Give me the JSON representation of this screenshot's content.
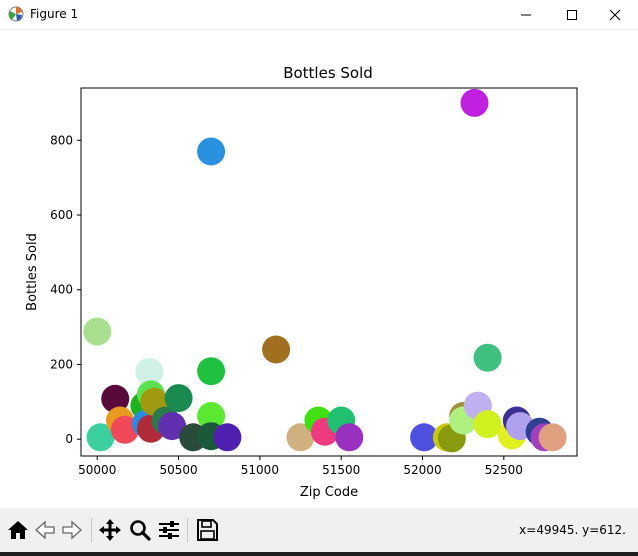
{
  "window": {
    "title": "Figure 1",
    "minimize": "—",
    "maximize": "☐",
    "close": "✕"
  },
  "toolbar": {
    "tools": [
      "home-icon",
      "back-icon",
      "forward-icon",
      "pan-icon",
      "zoom-icon",
      "configure-subplots-icon",
      "save-icon"
    ],
    "coordinates": "x=49945. y=612."
  },
  "chart_data": {
    "type": "scatter",
    "title": "Bottles Sold",
    "xlabel": "Zip Code",
    "ylabel": "Bottles Sold",
    "xlim": [
      49900,
      52950
    ],
    "ylim": [
      -45,
      940
    ],
    "xticks": [
      50000,
      50500,
      51000,
      51500,
      52000,
      52500
    ],
    "yticks": [
      0,
      200,
      400,
      600,
      800
    ],
    "grid": false,
    "points": [
      {
        "x": 50000,
        "y": 288,
        "color": "#a8e090"
      },
      {
        "x": 50020,
        "y": 5,
        "color": "#3dcfa0"
      },
      {
        "x": 50110,
        "y": 108,
        "color": "#5a0a3a"
      },
      {
        "x": 50140,
        "y": 50,
        "color": "#e89a20"
      },
      {
        "x": 50170,
        "y": 25,
        "color": "#f04a5a"
      },
      {
        "x": 50290,
        "y": 90,
        "color": "#1fb020"
      },
      {
        "x": 50300,
        "y": 42,
        "color": "#2a8ae0"
      },
      {
        "x": 50320,
        "y": 180,
        "color": "#d0f0e8"
      },
      {
        "x": 50330,
        "y": 120,
        "color": "#5ae050"
      },
      {
        "x": 50330,
        "y": 28,
        "color": "#b02a3a"
      },
      {
        "x": 50350,
        "y": 100,
        "color": "#a09a10"
      },
      {
        "x": 50420,
        "y": 50,
        "color": "#2a7a4a"
      },
      {
        "x": 50460,
        "y": 35,
        "color": "#6030b0"
      },
      {
        "x": 50500,
        "y": 110,
        "color": "#1a8a50"
      },
      {
        "x": 50590,
        "y": 5,
        "color": "#2a4a3a"
      },
      {
        "x": 50700,
        "y": 770,
        "color": "#2a90e0"
      },
      {
        "x": 50700,
        "y": 182,
        "color": "#20c040"
      },
      {
        "x": 50700,
        "y": 62,
        "color": "#5ae830"
      },
      {
        "x": 50700,
        "y": 8,
        "color": "#1a5a3a"
      },
      {
        "x": 50800,
        "y": 5,
        "color": "#5020b0"
      },
      {
        "x": 51100,
        "y": 240,
        "color": "#a07020"
      },
      {
        "x": 51250,
        "y": 5,
        "color": "#d0b080"
      },
      {
        "x": 51360,
        "y": 50,
        "color": "#40e010"
      },
      {
        "x": 51400,
        "y": 20,
        "color": "#f03a80"
      },
      {
        "x": 51500,
        "y": 50,
        "color": "#20c070"
      },
      {
        "x": 51550,
        "y": 5,
        "color": "#9a30c0"
      },
      {
        "x": 52010,
        "y": 5,
        "color": "#5050e0"
      },
      {
        "x": 52150,
        "y": 5,
        "color": "#c8c810"
      },
      {
        "x": 52180,
        "y": 2,
        "color": "#8a9a10"
      },
      {
        "x": 52250,
        "y": 62,
        "color": "#a09040"
      },
      {
        "x": 52250,
        "y": 50,
        "color": "#b0f080"
      },
      {
        "x": 52320,
        "y": 900,
        "color": "#c020e0"
      },
      {
        "x": 52340,
        "y": 90,
        "color": "#c0b0f0"
      },
      {
        "x": 52400,
        "y": 218,
        "color": "#40c080"
      },
      {
        "x": 52400,
        "y": 40,
        "color": "#d0f020"
      },
      {
        "x": 52550,
        "y": 10,
        "color": "#e0f020"
      },
      {
        "x": 52580,
        "y": 50,
        "color": "#3a3090"
      },
      {
        "x": 52600,
        "y": 35,
        "color": "#b0a0f0"
      },
      {
        "x": 52720,
        "y": 20,
        "color": "#304090"
      },
      {
        "x": 52750,
        "y": 5,
        "color": "#a040c0"
      },
      {
        "x": 52800,
        "y": 5,
        "color": "#e0a080"
      }
    ]
  }
}
